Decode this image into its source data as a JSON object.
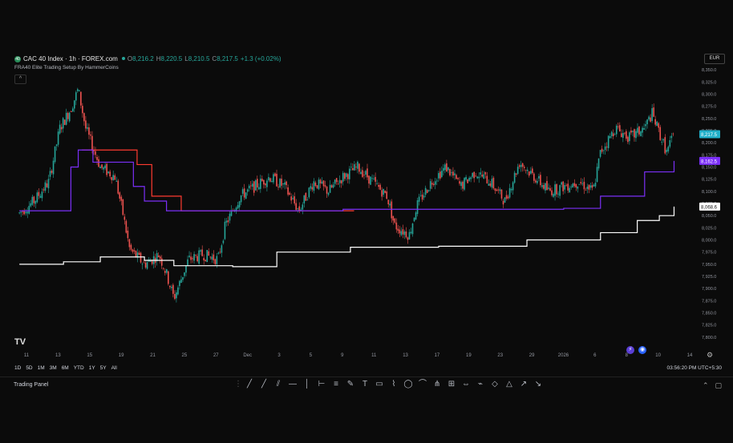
{
  "header": {
    "symbol_badge": "40",
    "title": "CAC 40 Index · 1h · FOREX.com",
    "ohlc": [
      {
        "k": "O",
        "v": "8,216.2"
      },
      {
        "k": "H",
        "v": "8,220.5"
      },
      {
        "k": "L",
        "v": "8,210.5"
      },
      {
        "k": "C",
        "v": "8,217.5"
      }
    ],
    "change": "+1.3 (+0.02%)",
    "indicator": "FRA40 Elite Trading Setup By HammerCoins",
    "collapse_icon": "chevron-up-icon"
  },
  "currency": "EUR",
  "price_axis": {
    "ticks": [
      "8,350.0",
      "8,325.0",
      "8,300.0",
      "8,275.0",
      "8,250.0",
      "8,225.0",
      "8,200.0",
      "8,175.0",
      "8,150.0",
      "8,125.0",
      "8,100.0",
      "8,075.0",
      "8,050.0",
      "8,025.0",
      "8,000.0",
      "7,975.0",
      "7,950.0",
      "7,925.0",
      "7,900.0",
      "7,875.0",
      "7,850.0",
      "7,825.0",
      "7,800.0"
    ],
    "tick_values": [
      8350,
      8325,
      8300,
      8275,
      8250,
      8225,
      8200,
      8175,
      8150,
      8125,
      8100,
      8075,
      8050,
      8025,
      8000,
      7975,
      7950,
      7925,
      7900,
      7875,
      7850,
      7825,
      7800
    ],
    "labels": [
      {
        "text": "8,217.5",
        "value": 8217.5,
        "color": "#22b0c9",
        "text_color": "#ffffff"
      },
      {
        "text": "8,162.5",
        "value": 8162.5,
        "color": "#7b2ff7",
        "text_color": "#ffffff"
      },
      {
        "text": "8,068.6",
        "value": 8068.6,
        "color": "#ffffff",
        "text_color": "#111111"
      }
    ]
  },
  "time_axis": {
    "labels": [
      "11",
      "13",
      "15",
      "19",
      "21",
      "25",
      "27",
      "Dec",
      "3",
      "5",
      "9",
      "11",
      "13",
      "17",
      "19",
      "23",
      "29",
      "2026",
      "6",
      "8",
      "10",
      "14"
    ]
  },
  "colors": {
    "background": "#0b0b0b",
    "up": "#26a69a",
    "down": "#ef5350",
    "red_line": "#ff3b30",
    "purple_line": "#7b2ff7",
    "white_line": "#ffffff"
  },
  "chart_data": {
    "type": "candlestick",
    "y_range": [
      7785,
      8365
    ],
    "lines": [
      {
        "name": "",
        "color": "#ff3b30",
        "points": [
          [
            0.095,
            8185
          ],
          [
            0.16,
            8185
          ],
          [
            0.17,
            8155
          ],
          [
            0.19,
            8090
          ],
          [
            0.23,
            8060
          ],
          [
            0.31,
            8060
          ],
          [
            0.38,
            8060
          ],
          [
            0.465,
            8060
          ]
        ]
      },
      {
        "name": "",
        "color": "#7b2ff7",
        "points": [
          [
            0.01,
            8060
          ],
          [
            0.06,
            8060
          ],
          [
            0.08,
            8150
          ],
          [
            0.09,
            8185
          ],
          [
            0.095,
            8185
          ],
          [
            0.11,
            8160
          ],
          [
            0.15,
            8160
          ],
          [
            0.165,
            8110
          ],
          [
            0.18,
            8080
          ],
          [
            0.21,
            8060
          ],
          [
            0.31,
            8060
          ],
          [
            0.45,
            8063
          ],
          [
            0.55,
            8063
          ],
          [
            0.75,
            8065
          ],
          [
            0.8,
            8090
          ],
          [
            0.86,
            8140
          ],
          [
            0.9,
            8162.5
          ]
        ]
      },
      {
        "name": "",
        "color": "#ffffff",
        "points": [
          [
            0.01,
            7950
          ],
          [
            0.07,
            7955
          ],
          [
            0.12,
            7965
          ],
          [
            0.18,
            7958
          ],
          [
            0.22,
            7947
          ],
          [
            0.3,
            7945
          ],
          [
            0.36,
            7975
          ],
          [
            0.46,
            7985
          ],
          [
            0.58,
            7987
          ],
          [
            0.7,
            8000
          ],
          [
            0.8,
            8015
          ],
          [
            0.85,
            8040
          ],
          [
            0.88,
            8050
          ],
          [
            0.9,
            8068.6
          ]
        ]
      }
    ],
    "candle_path": [
      [
        0.01,
        8055
      ],
      [
        0.03,
        8080
      ],
      [
        0.05,
        8120
      ],
      [
        0.065,
        8230
      ],
      [
        0.08,
        8270
      ],
      [
        0.09,
        8310
      ],
      [
        0.1,
        8230
      ],
      [
        0.12,
        8150
      ],
      [
        0.14,
        8130
      ],
      [
        0.15,
        8060
      ],
      [
        0.16,
        7980
      ],
      [
        0.18,
        7950
      ],
      [
        0.2,
        7970
      ],
      [
        0.21,
        7930
      ],
      [
        0.22,
        7880
      ],
      [
        0.24,
        7960
      ],
      [
        0.26,
        7970
      ],
      [
        0.28,
        7960
      ],
      [
        0.29,
        8030
      ],
      [
        0.31,
        8090
      ],
      [
        0.33,
        8110
      ],
      [
        0.35,
        8130
      ],
      [
        0.37,
        8110
      ],
      [
        0.39,
        8060
      ],
      [
        0.41,
        8120
      ],
      [
        0.43,
        8100
      ],
      [
        0.45,
        8130
      ],
      [
        0.47,
        8150
      ],
      [
        0.49,
        8120
      ],
      [
        0.51,
        8090
      ],
      [
        0.52,
        8030
      ],
      [
        0.54,
        8010
      ],
      [
        0.55,
        8070
      ],
      [
        0.57,
        8120
      ],
      [
        0.59,
        8150
      ],
      [
        0.61,
        8110
      ],
      [
        0.63,
        8140
      ],
      [
        0.65,
        8120
      ],
      [
        0.67,
        8080
      ],
      [
        0.69,
        8160
      ],
      [
        0.71,
        8130
      ],
      [
        0.73,
        8100
      ],
      [
        0.75,
        8110
      ],
      [
        0.77,
        8120
      ],
      [
        0.79,
        8100
      ],
      [
        0.8,
        8180
      ],
      [
        0.82,
        8230
      ],
      [
        0.84,
        8210
      ],
      [
        0.86,
        8230
      ],
      [
        0.87,
        8260
      ],
      [
        0.88,
        8220
      ],
      [
        0.89,
        8180
      ],
      [
        0.9,
        8217.5
      ]
    ]
  },
  "toolbar": {
    "time_ranges": [
      "1D",
      "5D",
      "1M",
      "3M",
      "6M",
      "YTD",
      "1Y",
      "5Y",
      "All"
    ],
    "clock": "03:56:20 PM UTC+5:30",
    "trading_panel": "Trading Panel",
    "tv_logo": "TV",
    "drawing_tools": [
      "trend-line-icon",
      "ray-icon",
      "parallel-channel-icon",
      "horizontal-line-icon",
      "vertical-line-icon",
      "horizontal-ray-icon",
      "fib-icon",
      "brush-icon",
      "text-icon",
      "rectangle-icon",
      "path-icon",
      "circle-icon",
      "arc-icon",
      "pitchfork-icon",
      "gann-icon",
      "measure-icon",
      "elliott-icon",
      "rotated-rect-icon",
      "triangle-icon",
      "long-position-icon",
      "short-position-icon"
    ],
    "drawing_glyphs": [
      "╱",
      "╱",
      "⫽",
      "―",
      "│",
      "⊢",
      "≡",
      "✎",
      "T",
      "▭",
      "⌇",
      "◯",
      "⌒",
      "⋔",
      "⊞",
      "⇔",
      "⌁",
      "◇",
      "△",
      "↗",
      "↘"
    ]
  }
}
